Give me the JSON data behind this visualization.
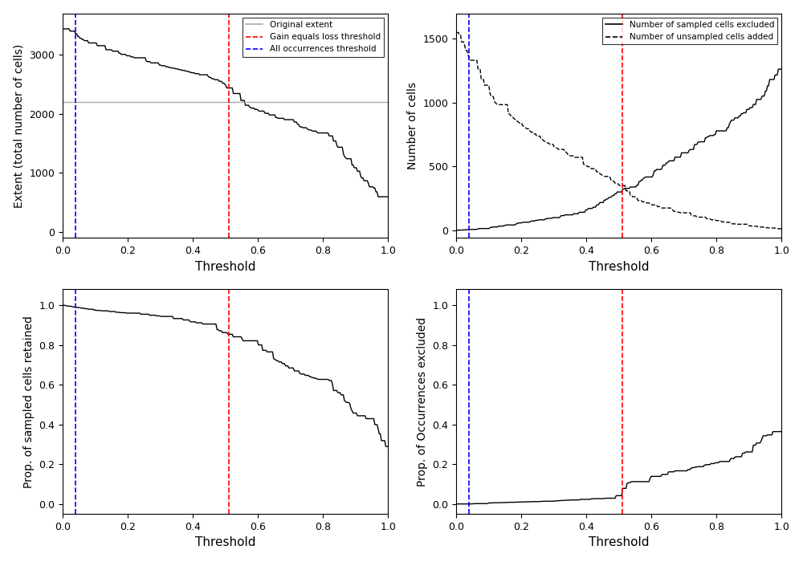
{
  "blue_threshold": 0.04,
  "red_threshold": 0.51,
  "original_extent": 2200,
  "xlim": [
    0.0,
    1.0
  ],
  "subplot1": {
    "ylabel": "Extent (total number of cells)",
    "xlabel": "Threshold",
    "ylim": [
      -100,
      3700
    ],
    "yticks": [
      0,
      1000,
      2000,
      3000
    ]
  },
  "subplot2": {
    "ylabel": "Number of cells",
    "xlabel": "Threshold",
    "ylim": [
      -60,
      1700
    ],
    "yticks": [
      0,
      500,
      1000,
      1500
    ]
  },
  "subplot3": {
    "ylabel": "Prop. of sampled cells retained",
    "xlabel": "Threshold",
    "ylim": [
      -0.05,
      1.08
    ],
    "yticks": [
      0.0,
      0.2,
      0.4,
      0.6,
      0.8,
      1.0
    ]
  },
  "subplot4": {
    "ylabel": "Prop. of Occurrences excluded",
    "xlabel": "Threshold",
    "ylim": [
      -0.05,
      1.08
    ],
    "yticks": [
      0.0,
      0.2,
      0.4,
      0.6,
      0.8,
      1.0
    ]
  },
  "legend1": {
    "entries": [
      "Original extent",
      "Gain equals loss threshold",
      "All occurrences threshold"
    ]
  },
  "legend2": {
    "entries": [
      "Number of sampled cells excluded",
      "Number of unsampled cells added"
    ]
  },
  "colors": {
    "blue": "#0000FF",
    "red": "#FF0000",
    "gray": "#AAAAAA",
    "black": "#000000"
  }
}
